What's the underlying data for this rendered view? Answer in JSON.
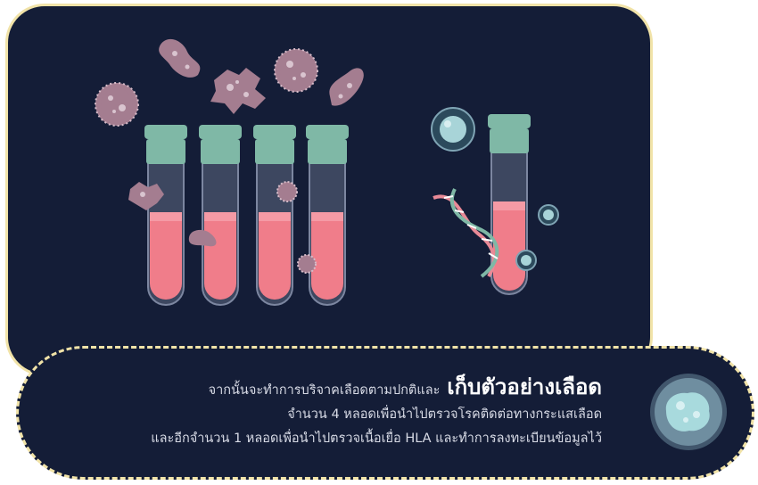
{
  "caption": {
    "line1_prefix": "จากนั้นจะทำการบริจาคเลือดตามปกติและ",
    "line1_highlight": "เก็บตัวอย่างเลือด",
    "line2": "จำนวน 4 หลอดเพื่อนำไปตรวจโรคติดต่อทางกระแสเลือด",
    "line3": "และอีกจำนวน 1 หลอดเพื่อนำไปตรวจเนื้อเยื่อ HLA และทำการลงทะเบียนข้อมูลไว้"
  },
  "colors": {
    "background": "#141d37",
    "border": "#f1e3a8",
    "tube_cap": "#7fb8a6",
    "blood": "#f07d8a",
    "germ": "#a47d90"
  },
  "icons": [
    "germ-icon",
    "test-tube-icon",
    "dna-icon",
    "cell-icon"
  ]
}
